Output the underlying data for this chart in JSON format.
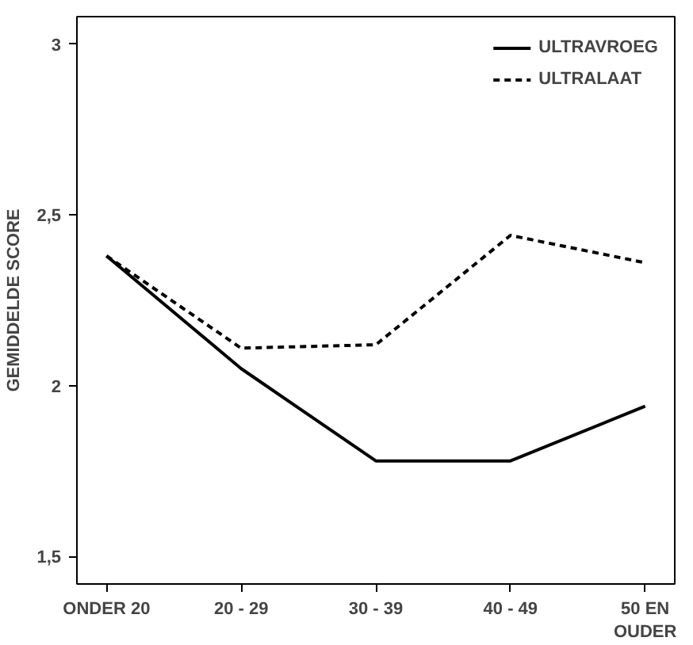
{
  "chart_data": {
    "type": "line",
    "ylabel": "GEMIDDELDE SCORE",
    "categories": [
      "ONDER 20",
      "20 - 29",
      "30 - 39",
      "40 - 49",
      "50 EN\nOUDER"
    ],
    "series": [
      {
        "name": "ULTRAVROEG",
        "color": "#000000",
        "line_style": "solid",
        "values": [
          2.38,
          2.05,
          1.78,
          1.78,
          1.94
        ]
      },
      {
        "name": "ULTRALAAT",
        "color": "#000000",
        "line_style": "dashed",
        "values": [
          2.38,
          2.11,
          2.12,
          2.44,
          2.36
        ]
      }
    ],
    "ylim": [
      1.42,
      3.08
    ],
    "yticks": [
      {
        "value": 2.5,
        "label": "2,5"
      },
      {
        "value": 2,
        "label": "2"
      },
      {
        "value": 3,
        "label": "3"
      },
      {
        "value": 1.5,
        "label": "1,5"
      }
    ],
    "grid": false,
    "legend": "top right",
    "marker": "none"
  }
}
